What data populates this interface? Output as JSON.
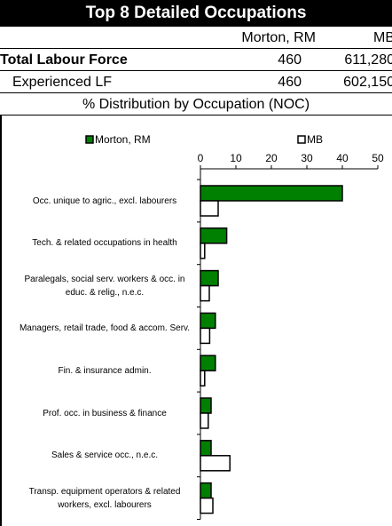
{
  "header": {
    "title": "Top 8 Detailed Occupations"
  },
  "table": {
    "columns": [
      "Morton, RM",
      "MB"
    ],
    "rows": [
      [
        "Total Labour Force",
        "460",
        "611,280"
      ],
      [
        "Experienced LF",
        "460",
        "602,150"
      ]
    ],
    "subtitle": "% Distribution by Occupation (NOC)"
  },
  "chart_data": {
    "type": "bar",
    "orientation": "horizontal",
    "categories": [
      "Occ. unique to agric., excl. labourers",
      "Tech. & related occupations in health",
      "Paralegals, social serv. workers & occ. in educ. & relig., n.e.c.",
      "Managers, retail trade, food & accom. Serv.",
      "Fin. & insurance admin.",
      "Prof. occ. in business & finance",
      "Sales & service occ., n.e.c.",
      "Transp. equipment operators & related workers, excl. labourers"
    ],
    "series": [
      {
        "name": "Morton, RM",
        "color": "#008000",
        "values": [
          40,
          7.4,
          5,
          4.2,
          4.2,
          3,
          3,
          3
        ]
      },
      {
        "name": "MB",
        "color": "#ffffff",
        "values": [
          5,
          1.2,
          2.5,
          2.6,
          1.2,
          2.2,
          8.3,
          3.5
        ]
      }
    ],
    "xlim": [
      0,
      50
    ],
    "xticks": [
      0,
      10,
      20,
      30,
      40,
      50
    ]
  }
}
